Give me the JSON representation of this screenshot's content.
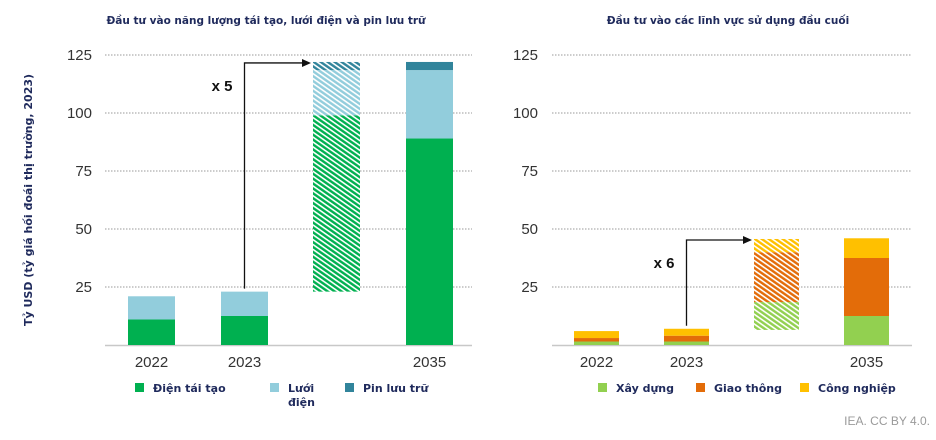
{
  "credit": "IEA. CC BY 4.0.",
  "y_axis_label": "Tỷ USD (tỷ giá hối đoái thị trường, 2023)",
  "chart_data": [
    {
      "type": "bar",
      "stacked": true,
      "title": "Đầu tư vào năng lượng tái tạo, lưới điện và pin lưu trữ",
      "xlabel": "",
      "ylabel": "Tỷ USD (tỷ giá hối đoái thị trường, 2023)",
      "ylim": [
        0,
        125
      ],
      "yticks": [
        25,
        50,
        75,
        100,
        125
      ],
      "grid": true,
      "categories": [
        "2022",
        "2023",
        "",
        "2035"
      ],
      "series": [
        {
          "name": "Điện tái tạo",
          "color": "#00b050",
          "values": [
            11,
            12.5,
            76,
            89
          ]
        },
        {
          "name": "Lưới điện",
          "color": "#92cddc",
          "values": [
            10,
            10.5,
            19.5,
            29.5
          ]
        },
        {
          "name": "Pin lưu trữ",
          "color": "#31849b",
          "values": [
            0,
            0,
            3.5,
            3.5
          ]
        }
      ],
      "increment_bar": {
        "category_index": 2,
        "base": 23,
        "hatched": true
      },
      "annotation": {
        "text": "x 5",
        "from": "2023",
        "to_index": 2
      },
      "legend": {
        "position": "bottom",
        "labels": [
          "Điện tái tạo",
          "Lưới\nđiện",
          "Pin lưu trữ"
        ]
      }
    },
    {
      "type": "bar",
      "stacked": true,
      "title": "Đầu tư vào các lĩnh vực sử dụng đầu cuối",
      "xlabel": "",
      "ylabel": "",
      "ylim": [
        0,
        125
      ],
      "yticks": [
        25,
        50,
        75,
        100,
        125
      ],
      "grid": true,
      "categories": [
        "2022",
        "2023",
        "",
        "2035"
      ],
      "series": [
        {
          "name": "Xây dựng",
          "color": "#92d050",
          "values": [
            1.5,
            1.5,
            12,
            12.5
          ]
        },
        {
          "name": "Giao thông",
          "color": "#e36c09",
          "values": [
            1.5,
            2.5,
            21.5,
            25
          ]
        },
        {
          "name": "Công nghiệp",
          "color": "#ffc000",
          "values": [
            3,
            3,
            5.7,
            8.5
          ]
        }
      ],
      "increment_bar": {
        "category_index": 2,
        "base": 6.5,
        "hatched": true
      },
      "annotation": {
        "text": "x 6",
        "from": "2023",
        "to_index": 2
      },
      "legend": {
        "position": "bottom",
        "labels": [
          "Xây dựng",
          "Giao thông",
          "Công nghiệp"
        ]
      }
    }
  ]
}
